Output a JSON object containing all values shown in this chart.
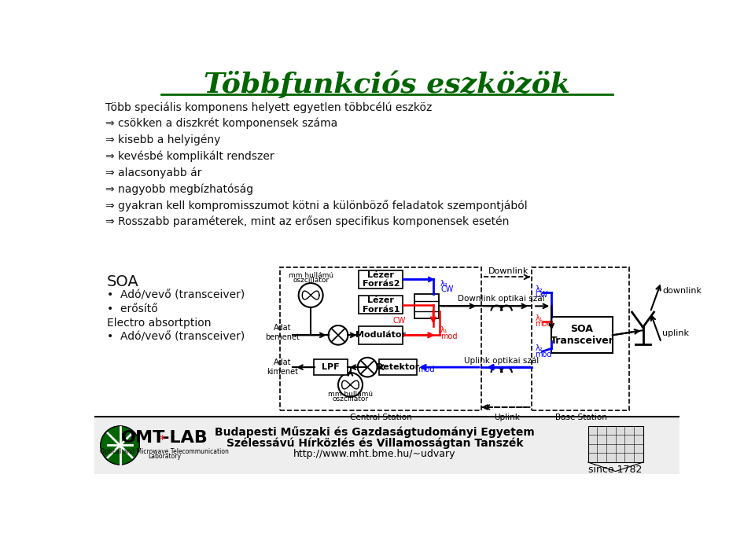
{
  "title": "Többfunkciós eszközök",
  "title_color": "#006400",
  "title_fontsize": 26,
  "bg_color": "#ffffff",
  "bullet_lines": [
    "Több speciális komponens helyett egyetlen többcélú eszköz",
    "⇒ csökken a diszkrét komponensek száma",
    "⇒ kisebb a helyigény",
    "⇒ kevésbé komplikált rendszer",
    "⇒ alacsonyabb ár",
    "⇒ nagyobb megbízhatóság",
    "⇒ gyakran kell kompromisszumot kötni a különböző feladatok szempontjából",
    "⇒ Rosszabb paraméterek, mint az erősen specifikus komponensek esetén"
  ],
  "left_text_lines": [
    [
      "SOA",
      14,
      false
    ],
    [
      "•  Adó/vevő (transceiver)",
      10,
      false
    ],
    [
      "•  erősítő",
      10,
      false
    ],
    [
      "Electro absortption",
      10,
      false
    ],
    [
      "•  Adó/vevő (transceiver)",
      10,
      false
    ]
  ],
  "footer_center1": "Budapesti Műszaki és Gazdaságtudományi Egyetem",
  "footer_center2": "Szélessávú Hírközlés és Villamosságtan Tanszék",
  "footer_center3": "http://www.mht.bme.hu/~udvary",
  "footer_right": "since 1782"
}
